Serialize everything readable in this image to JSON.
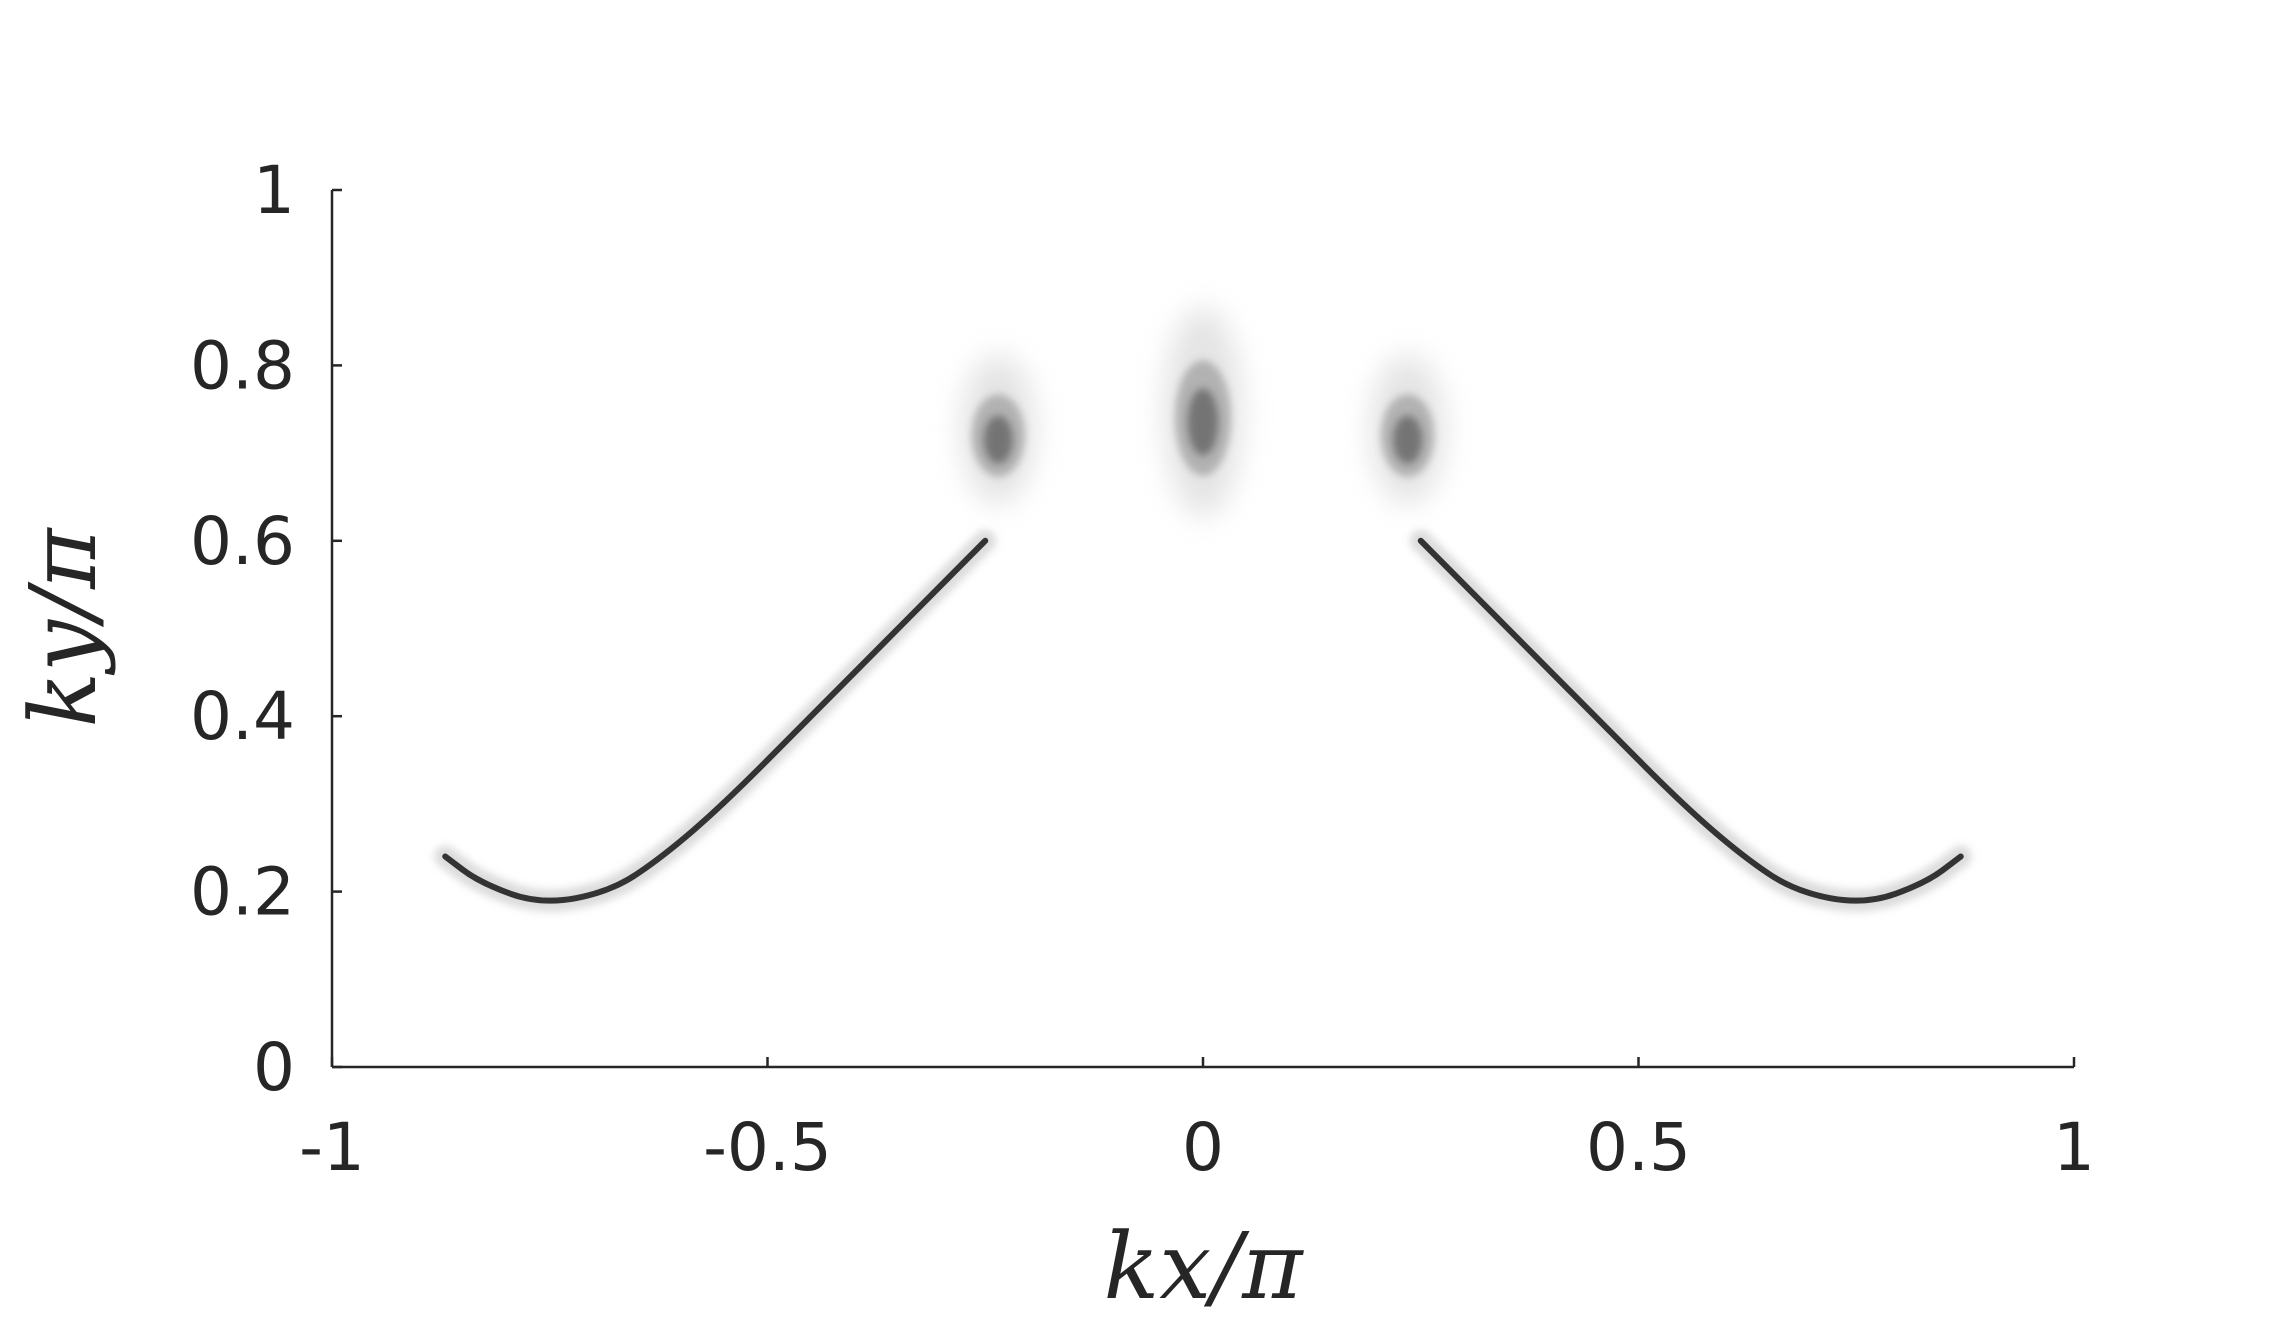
{
  "chart_data": {
    "type": "heatmap",
    "title": "",
    "xlabel": "kx/π",
    "ylabel": "ky/π",
    "xlim": [
      -1,
      1
    ],
    "ylim": [
      0,
      1
    ],
    "x_ticks": [
      "-1",
      "-0.5",
      "0",
      "0.5",
      "1"
    ],
    "y_ticks": [
      "0",
      "0.2",
      "0.4",
      "0.6",
      "0.8",
      "1"
    ],
    "x_tick_values": [
      -1,
      -0.5,
      0,
      0.5,
      1
    ],
    "y_tick_values": [
      0,
      0.2,
      0.4,
      0.6,
      0.8,
      1
    ],
    "colormap": "white-to-black (grayscale intensity)",
    "grid": false,
    "features": [
      {
        "name": "left arc",
        "points": [
          [
            -0.25,
            0.6
          ],
          [
            -0.35,
            0.5
          ],
          [
            -0.45,
            0.4
          ],
          [
            -0.55,
            0.3
          ],
          [
            -0.62,
            0.24
          ],
          [
            -0.68,
            0.2
          ],
          [
            -0.76,
            0.185
          ],
          [
            -0.83,
            0.21
          ],
          [
            -0.87,
            0.24
          ]
        ]
      },
      {
        "name": "right arc",
        "points": [
          [
            0.25,
            0.6
          ],
          [
            0.35,
            0.5
          ],
          [
            0.45,
            0.4
          ],
          [
            0.55,
            0.3
          ],
          [
            0.62,
            0.24
          ],
          [
            0.68,
            0.2
          ],
          [
            0.76,
            0.185
          ],
          [
            0.83,
            0.21
          ],
          [
            0.87,
            0.24
          ]
        ]
      },
      {
        "name": "left spot",
        "center": [
          -0.235,
          0.72
        ]
      },
      {
        "name": "center spot",
        "center": [
          0.0,
          0.74
        ]
      },
      {
        "name": "right spot",
        "center": [
          0.235,
          0.72
        ]
      }
    ]
  }
}
